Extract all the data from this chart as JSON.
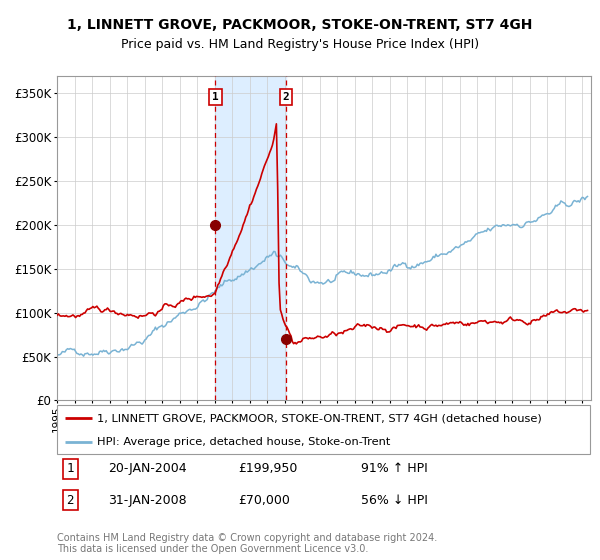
{
  "title": "1, LINNETT GROVE, PACKMOOR, STOKE-ON-TRENT, ST7 4GH",
  "subtitle": "Price paid vs. HM Land Registry's House Price Index (HPI)",
  "ylim": [
    0,
    370000
  ],
  "yticks": [
    0,
    50000,
    100000,
    150000,
    200000,
    250000,
    300000,
    350000
  ],
  "ytick_labels": [
    "£0",
    "£50K",
    "£100K",
    "£150K",
    "£200K",
    "£250K",
    "£300K",
    "£350K"
  ],
  "sale1_date": 2004.05,
  "sale1_price": 199950,
  "sale1_label": "1",
  "sale1_hpi_pct": "91% ↑ HPI",
  "sale1_date_str": "20-JAN-2004",
  "sale2_date": 2008.08,
  "sale2_price": 70000,
  "sale2_label": "2",
  "sale2_hpi_pct": "56% ↓ HPI",
  "sale2_date_str": "31-JAN-2008",
  "hpi_color": "#7ab3d4",
  "price_color": "#cc0000",
  "sale_dot_color": "#880000",
  "shade_color": "#ddeeff",
  "legend_line1": "1, LINNETT GROVE, PACKMOOR, STOKE-ON-TRENT, ST7 4GH (detached house)",
  "legend_line2": "HPI: Average price, detached house, Stoke-on-Trent",
  "footer": "Contains HM Land Registry data © Crown copyright and database right 2024.\nThis data is licensed under the Open Government Licence v3.0.",
  "title_fontsize": 10,
  "subtitle_fontsize": 9
}
